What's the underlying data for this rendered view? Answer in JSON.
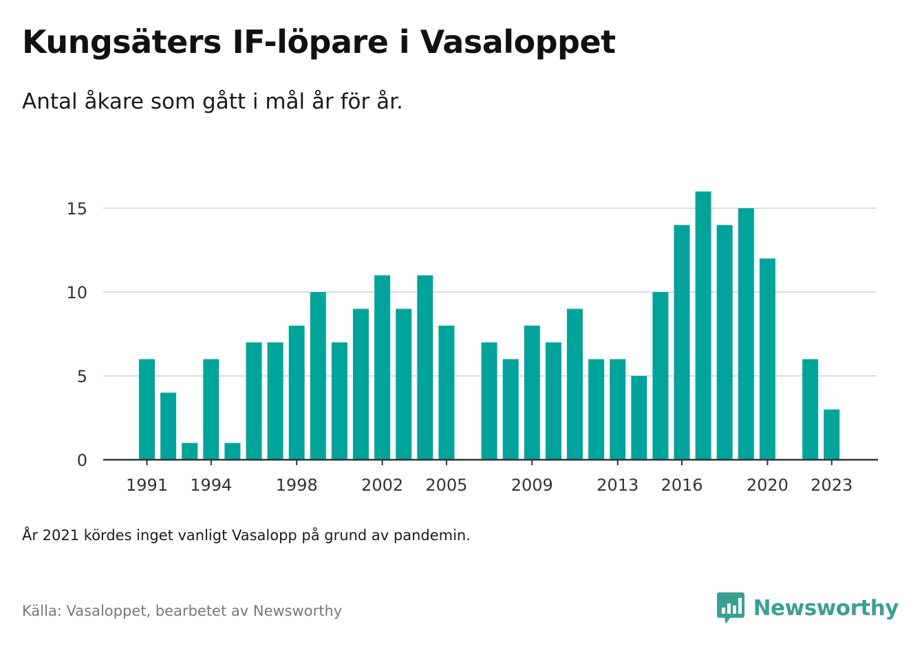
{
  "title": "Kungsäters IF-löpare i Vasaloppet",
  "subtitle": "Antal åkare som gått i mål år för år.",
  "note": "År 2021 kördes inget vanligt Vasalopp på grund av pandemin.",
  "source": "Källa: Vasaloppet, bearbetet av Newsworthy",
  "brand": {
    "name": "Newsworthy",
    "icon": "newsworthy-logo-icon"
  },
  "colors": {
    "bar": "#00a49a",
    "grid": "#dddddd",
    "axis": "#333333",
    "brand": "#3aa094"
  },
  "chart_data": {
    "type": "bar",
    "x": [
      1991,
      1992,
      1993,
      1994,
      1995,
      1996,
      1997,
      1998,
      1999,
      2000,
      2001,
      2002,
      2003,
      2004,
      2005,
      2006,
      2007,
      2008,
      2009,
      2010,
      2011,
      2012,
      2013,
      2014,
      2015,
      2016,
      2017,
      2018,
      2019,
      2020,
      2021,
      2022,
      2023
    ],
    "values": [
      6,
      4,
      1,
      6,
      1,
      7,
      7,
      8,
      10,
      7,
      9,
      11,
      9,
      11,
      8,
      null,
      7,
      6,
      8,
      7,
      9,
      6,
      6,
      5,
      10,
      14,
      16,
      14,
      15,
      12,
      null,
      6,
      3
    ],
    "x_tick_labels": [
      "1991",
      "1994",
      "1998",
      "2002",
      "2005",
      "2009",
      "2013",
      "2016",
      "2020",
      "2023"
    ],
    "y_ticks": [
      0,
      5,
      10,
      15
    ],
    "ylim": [
      0,
      17
    ],
    "xlabel": "",
    "ylabel": "",
    "grid": true
  }
}
